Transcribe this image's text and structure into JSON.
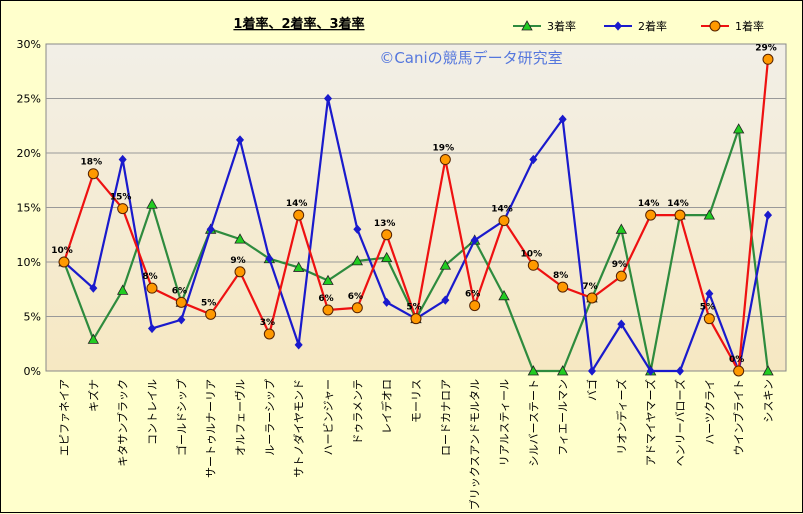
{
  "watermark": "©Caniの競馬データ研究室",
  "chart_data": {
    "type": "line",
    "title": "1着率、2着率、3着率",
    "xlabel": "",
    "ylabel": "",
    "ylim": [
      0,
      30
    ],
    "yticks": [
      "0%",
      "5%",
      "10%",
      "15%",
      "20%",
      "25%",
      "30%"
    ],
    "grid": true,
    "legend_position": "top-right",
    "categories": [
      "エピファネイア",
      "キズナ",
      "キタサンブラック",
      "コントレイル",
      "ゴールドシップ",
      "サートゥルナーリア",
      "オルフェーヴル",
      "ルーラーシップ",
      "サトノダイヤモンド",
      "ハービンジャー",
      "ドゥラメンテ",
      "レイデオロ",
      "モーリス",
      "ロードカナロア",
      "ブリックスアンドモルタル",
      "リアルスティール",
      "シルバーステート",
      "フィエールマン",
      "バゴ",
      "リオンディーズ",
      "アドマイヤマーズ",
      "ヘンリーバローズ",
      "ハーツクライ",
      "ウインブライト",
      "シスキン"
    ],
    "series": [
      {
        "name": "3着率",
        "color": "#2e8b3e",
        "marker": "triangle",
        "marker_fill": "#22cc22",
        "values": [
          10.0,
          2.9,
          7.4,
          15.3,
          6.3,
          13.0,
          12.1,
          10.3,
          9.5,
          8.3,
          10.1,
          10.4,
          4.8,
          9.7,
          12.0,
          6.9,
          0.0,
          0.0,
          6.7,
          13.0,
          0.0,
          14.3,
          14.3,
          22.2,
          0.0
        ]
      },
      {
        "name": "2着率",
        "color": "#1a1acc",
        "marker": "diamond",
        "marker_fill": "#1a1acc",
        "values": [
          10.0,
          7.6,
          19.4,
          3.9,
          4.7,
          13.0,
          21.2,
          10.3,
          2.4,
          25.0,
          13.0,
          6.3,
          4.8,
          6.5,
          12.0,
          13.8,
          19.4,
          23.1,
          0.0,
          4.3,
          0.0,
          0.0,
          7.1,
          0.0,
          14.3
        ]
      },
      {
        "name": "1着率",
        "color": "#ee1111",
        "marker": "circle",
        "marker_fill": "#ff9900",
        "values": [
          10.0,
          18.1,
          14.9,
          7.6,
          6.3,
          5.2,
          9.1,
          3.4,
          14.3,
          5.6,
          5.8,
          12.5,
          4.8,
          19.4,
          6.0,
          13.8,
          9.7,
          7.7,
          6.7,
          8.7,
          14.3,
          14.3,
          4.8,
          0.0,
          28.6
        ],
        "data_labels": [
          "10%",
          "18%",
          "15%",
          "8%",
          "6%",
          "5%",
          "9%",
          "3%",
          "14%",
          "6%",
          "6%",
          "13%",
          "5%",
          "19%",
          "6%",
          "14%",
          "10%",
          "8%",
          "7%",
          "9%",
          "14%",
          "14%",
          "5%",
          "0%",
          "29%"
        ]
      }
    ]
  }
}
